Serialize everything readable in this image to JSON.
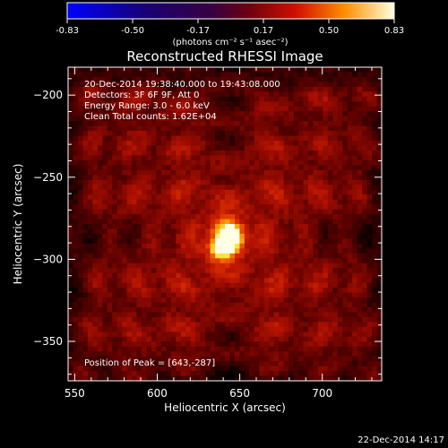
{
  "chart_data": {
    "type": "heatmap",
    "title": "Reconstructed RHESSI Image",
    "xlabel": "Heliocentric X (arcsec)",
    "ylabel": "Heliocentric Y (arcsec)",
    "xlim": [
      546,
      736
    ],
    "ylim": [
      -374,
      -183
    ],
    "x_ticks": [
      550,
      600,
      650,
      700
    ],
    "y_ticks": [
      -200,
      -250,
      -300,
      -350
    ],
    "colorbar": {
      "min": -0.83,
      "max": 0.83,
      "ticks": [
        "-0.83",
        "-0.50",
        "-0.17",
        "0.17",
        "0.50",
        "0.83"
      ],
      "unit_label": "(photons cm⁻² s⁻¹ asec⁻²)"
    },
    "annotations": [
      "20-Dec-2014 19:38:40.000 to 19:43:08.000",
      "Detectors: 3F 6F 9F, Att 0",
      "Energy Range: 3.0 - 6.0 keV",
      "Clean     Total counts: 1.62E+04"
    ],
    "peak_label": "Position of Peak = [643,-287]",
    "peak": {
      "x": 643,
      "y": -287,
      "value": 0.83
    },
    "background_level": 0.22
  },
  "footer_timestamp": "22-Dec-2014 14:17",
  "colors": {
    "background": "#000000",
    "foreground": "#ffffff"
  }
}
